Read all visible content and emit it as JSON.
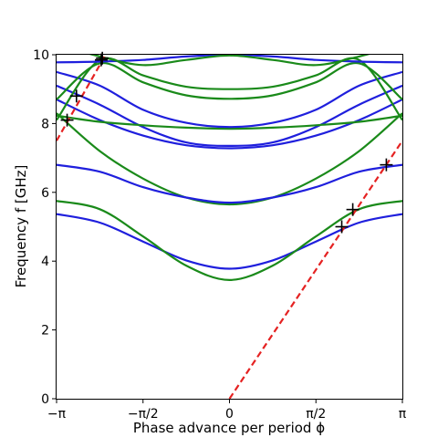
{
  "chart_data": {
    "type": "line",
    "title": "",
    "xlabel": "Phase advance per period ϕ",
    "ylabel": "Frequency f [GHz]",
    "xlim": [
      -3.14159,
      3.14159
    ],
    "ylim": [
      0,
      10
    ],
    "x_ticks": [
      {
        "value": -3.14159,
        "label": "−π"
      },
      {
        "value": -1.5708,
        "label": "−π/2"
      },
      {
        "value": 0,
        "label": "0"
      },
      {
        "value": 1.5708,
        "label": "π/2"
      },
      {
        "value": 3.14159,
        "label": "π"
      }
    ],
    "y_ticks": [
      {
        "value": 0,
        "label": "0"
      },
      {
        "value": 2,
        "label": "2"
      },
      {
        "value": 4,
        "label": "4"
      },
      {
        "value": 6,
        "label": "6"
      },
      {
        "value": 8,
        "label": "8"
      },
      {
        "value": 10,
        "label": "10"
      }
    ],
    "grid": false,
    "legend": "none",
    "colors": {
      "blue": "#1f1fdd",
      "green": "#1a8a1a",
      "red": "#e52222",
      "marker": "#000000"
    },
    "series": [
      {
        "color": "blue",
        "x": [
          -3.1416,
          -2.3562,
          -1.5708,
          -0.7854,
          0,
          0.7854,
          1.5708,
          2.3562,
          3.1416
        ],
        "values": [
          5.37,
          5.12,
          4.57,
          4.02,
          3.78,
          4.02,
          4.57,
          5.12,
          5.37
        ]
      },
      {
        "color": "green",
        "x": [
          -3.1416,
          -2.3562,
          -1.5708,
          -0.7854,
          0,
          0.7854,
          1.5708,
          2.3562,
          3.1416
        ],
        "values": [
          5.75,
          5.51,
          4.72,
          3.87,
          3.45,
          3.87,
          4.72,
          5.51,
          5.75
        ]
      },
      {
        "color": "green",
        "x": [
          -3.1416,
          -2.3562,
          -1.5708,
          -0.7854,
          0,
          0.7854,
          1.5708,
          2.3562,
          3.1416
        ],
        "values": [
          8.3,
          7.2,
          6.4,
          5.85,
          5.65,
          5.85,
          6.4,
          7.2,
          8.3
        ]
      },
      {
        "color": "blue",
        "x": [
          -3.1416,
          -2.3562,
          -1.5708,
          -0.7854,
          0,
          0.7854,
          1.5708,
          2.3562,
          3.1416
        ],
        "values": [
          6.8,
          6.6,
          6.15,
          5.85,
          5.7,
          5.85,
          6.15,
          6.6,
          6.8
        ]
      },
      {
        "color": "blue",
        "x": [
          -3.1416,
          -2.3562,
          -1.5708,
          -0.7854,
          0,
          0.7854,
          1.5708,
          2.3562,
          3.1416
        ],
        "values": [
          8.7,
          8.1,
          7.65,
          7.37,
          7.28,
          7.37,
          7.65,
          8.1,
          8.7
        ]
      },
      {
        "color": "blue",
        "x": [
          -3.1416,
          -2.3562,
          -1.5708,
          -0.7854,
          0,
          0.7854,
          1.5708,
          2.3562,
          3.1416
        ],
        "values": [
          9.1,
          8.55,
          7.9,
          7.45,
          7.35,
          7.45,
          7.9,
          8.55,
          9.1
        ]
      },
      {
        "color": "green",
        "x": [
          -3.1416,
          -2.3562,
          -1.5708,
          -0.7854,
          0,
          0.7854,
          1.5708,
          2.3562,
          3.1416
        ],
        "values": [
          8.23,
          8.05,
          7.95,
          7.88,
          7.85,
          7.88,
          7.95,
          8.05,
          8.23
        ]
      },
      {
        "color": "blue",
        "x": [
          -3.1416,
          -2.3562,
          -1.5708,
          -0.7854,
          0,
          0.7854,
          1.5708,
          2.3562,
          3.1416
        ],
        "values": [
          9.5,
          9.1,
          8.4,
          8.02,
          7.9,
          8.02,
          8.4,
          9.1,
          9.5
        ]
      },
      {
        "color": "green",
        "x": [
          -3.1416,
          -2.3562,
          -1.5708,
          -0.7854,
          0,
          0.7854,
          1.5708,
          2.3562,
          3.1416
        ],
        "values": [
          8.7,
          9.75,
          9.2,
          8.82,
          8.72,
          8.82,
          9.2,
          9.75,
          8.7
        ]
      },
      {
        "color": "green",
        "x": [
          -3.1416,
          -2.3562,
          -1.5708,
          -0.7854,
          0,
          0.7854,
          1.5708,
          2.3562,
          3.1416
        ],
        "values": [
          8.1,
          9.85,
          9.4,
          9.07,
          9.0,
          9.07,
          9.4,
          9.85,
          8.1
        ]
      },
      {
        "color": "blue",
        "x": [
          -3.1416,
          -2.3562,
          -1.5708,
          -0.7854,
          0,
          0.7854,
          1.5708,
          2.3562,
          3.1416
        ],
        "values": [
          9.78,
          9.8,
          9.85,
          9.95,
          10.0,
          9.95,
          9.85,
          9.8,
          9.78
        ]
      },
      {
        "color": "green",
        "x": [
          -3.1416,
          -2.3562,
          -1.5708,
          -0.7854,
          0,
          0.7854,
          1.5708,
          2.3562,
          3.1416
        ],
        "values": [
          10.3,
          9.95,
          9.7,
          9.85,
          9.98,
          9.85,
          9.7,
          9.95,
          10.3
        ]
      }
    ],
    "light_lines": [
      {
        "color": "red",
        "style": "dashed",
        "x": [
          0,
          3.1416
        ],
        "values": [
          0,
          7.5
        ]
      },
      {
        "color": "red",
        "style": "dashed",
        "x": [
          -3.1416,
          -2.25
        ],
        "values": [
          7.5,
          10.0
        ]
      }
    ],
    "markers": [
      {
        "x": 2.04,
        "y": 5.0
      },
      {
        "x": 2.24,
        "y": 5.5
      },
      {
        "x": 2.85,
        "y": 6.8
      },
      {
        "x": -2.95,
        "y": 8.1
      },
      {
        "x": -2.78,
        "y": 8.8
      },
      {
        "x": -2.33,
        "y": 9.85
      },
      {
        "x": -2.31,
        "y": 9.9
      }
    ]
  }
}
